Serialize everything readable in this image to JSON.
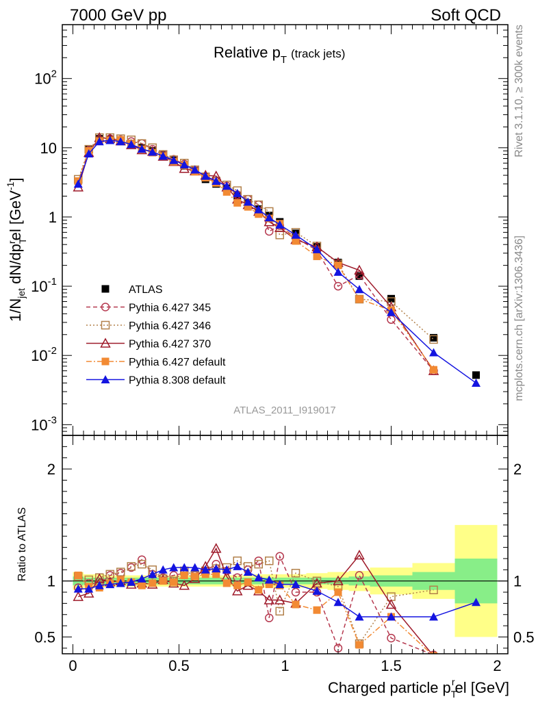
{
  "header": {
    "left": "7000 GeV pp",
    "right": "Soft QCD"
  },
  "side_labels": {
    "rivet": "Rivet 3.1.10, ≥ 300k events",
    "mcplots": "mcplots.cern.ch [arXiv:1306.3436]"
  },
  "chart_data": [
    {
      "type": "scatter",
      "title_main": "Relative p",
      "title_sub": "T",
      "title_extra": "(track jets)",
      "analysis_id": "ATLAS_2011_I919017",
      "ylabel_parts": [
        "1/N",
        "jet",
        " dN/dp",
        "T",
        "r",
        "el [GeV",
        "-1",
        "]"
      ],
      "y_scale": "log",
      "ylim": [
        0.0007,
        600
      ],
      "xlim": [
        -0.05,
        2.05
      ],
      "y_ticks": [
        {
          "v": 0.001,
          "m": "10",
          "e": "-3"
        },
        {
          "v": 0.01,
          "m": "10",
          "e": "-2"
        },
        {
          "v": 0.1,
          "m": "10",
          "e": "-1"
        },
        {
          "v": 1,
          "m": "1",
          "e": ""
        },
        {
          "v": 10,
          "m": "10",
          "e": ""
        },
        {
          "v": 100,
          "m": "10",
          "e": "2"
        }
      ],
      "x": [
        0.025,
        0.075,
        0.125,
        0.175,
        0.225,
        0.275,
        0.325,
        0.375,
        0.425,
        0.475,
        0.525,
        0.575,
        0.625,
        0.675,
        0.725,
        0.775,
        0.825,
        0.875,
        0.925,
        0.975,
        1.05,
        1.15,
        1.25,
        1.35,
        1.5,
        1.7,
        1.9
      ],
      "series": [
        {
          "name": "ATLAS",
          "color": "#000000",
          "marker": "square-filled",
          "line": "none",
          "values": [
            3.3,
            9.5,
            13.5,
            13.2,
            12.5,
            11.5,
            10.0,
            9.0,
            7.8,
            6.6,
            5.5,
            4.6,
            3.5,
            3.0,
            2.6,
            2.0,
            1.6,
            1.3,
            1.05,
            0.85,
            0.58,
            0.37,
            0.22,
            0.14,
            0.066,
            0.018,
            0.0052
          ]
        },
        {
          "name": "Pythia 6.427 345",
          "color": "#b5384e",
          "marker": "circle-open",
          "line": "dashed",
          "values": [
            3.2,
            9.2,
            13.0,
            13.5,
            13.0,
            12.3,
            11.5,
            9.5,
            8.0,
            6.8,
            5.8,
            4.8,
            3.8,
            3.3,
            2.8,
            2.1,
            1.8,
            1.5,
            0.62,
            0.75,
            0.5,
            0.33,
            0.1,
            0.145,
            0.033,
            0.006,
            null
          ]
        },
        {
          "name": "Pythia 6.427 346",
          "color": "#b2804a",
          "marker": "square-open",
          "line": "dotted",
          "values": [
            3.5,
            9.5,
            14.0,
            14.0,
            13.5,
            13.0,
            11.5,
            10.0,
            8.0,
            6.7,
            6.0,
            4.8,
            3.8,
            3.3,
            2.9,
            2.4,
            1.8,
            1.5,
            1.2,
            0.55,
            0.6,
            0.38,
            0.21,
            0.065,
            0.06,
            0.017,
            null
          ]
        },
        {
          "name": "Pythia 6.427 370",
          "color": "#9e1a2a",
          "marker": "triangle-open",
          "line": "solid",
          "values": [
            2.7,
            8.5,
            14.0,
            13.5,
            12.5,
            11.0,
            9.3,
            8.8,
            7.5,
            6.3,
            5.0,
            4.6,
            4.0,
            3.9,
            2.7,
            1.8,
            1.5,
            1.2,
            0.85,
            0.7,
            0.47,
            0.37,
            0.22,
            0.17,
            0.05,
            0.006,
            null
          ]
        },
        {
          "name": "Pythia 6.427 default",
          "color": "#f28a33",
          "marker": "square-filled",
          "line": "dashdot",
          "values": [
            3.3,
            9.0,
            12.5,
            12.8,
            13.0,
            11.5,
            9.5,
            8.5,
            7.6,
            6.3,
            5.6,
            4.5,
            3.7,
            3.1,
            2.3,
            1.6,
            1.4,
            1.1,
            0.95,
            0.8,
            0.45,
            0.27,
            0.2,
            0.065,
            0.045,
            0.0062,
            null
          ]
        },
        {
          "name": "Pythia 8.308 default",
          "color": "#1414e0",
          "marker": "triangle-filled",
          "line": "solid",
          "values": [
            3.0,
            8.2,
            12.3,
            12.8,
            12.3,
            11.2,
            9.6,
            8.7,
            7.6,
            6.6,
            5.7,
            4.8,
            3.9,
            3.3,
            2.8,
            2.2,
            1.65,
            1.28,
            0.98,
            0.77,
            0.55,
            0.34,
            0.16,
            0.09,
            0.042,
            0.011,
            0.004
          ]
        }
      ]
    },
    {
      "type": "scatter",
      "ylabel": "Ratio to ATLAS",
      "ylim": [
        0.35,
        2.3
      ],
      "xlim": [
        -0.05,
        2.05
      ],
      "xlabel_parts": [
        "Charged particle p",
        "T",
        "r",
        "el [GeV]"
      ],
      "x_ticks": [
        {
          "v": 0,
          "l": "0"
        },
        {
          "v": 0.5,
          "l": "0.5"
        },
        {
          "v": 1,
          "l": "1"
        },
        {
          "v": 1.5,
          "l": "1.5"
        },
        {
          "v": 2,
          "l": "2"
        }
      ],
      "y_ticks": [
        {
          "v": 0.5,
          "l": "0.5"
        },
        {
          "v": 1,
          "l": "1"
        },
        {
          "v": 2,
          "l": "2"
        }
      ],
      "x_edges": [
        0,
        0.05,
        0.1,
        0.15,
        0.2,
        0.25,
        0.3,
        0.35,
        0.4,
        0.45,
        0.5,
        0.55,
        0.6,
        0.65,
        0.7,
        0.75,
        0.8,
        0.85,
        0.9,
        0.95,
        1.0,
        1.1,
        1.2,
        1.3,
        1.4,
        1.6,
        1.8,
        2.0
      ],
      "band_stat": [
        0.04,
        0.03,
        0.03,
        0.03,
        0.03,
        0.03,
        0.03,
        0.03,
        0.03,
        0.03,
        0.03,
        0.03,
        0.03,
        0.03,
        0.03,
        0.03,
        0.03,
        0.03,
        0.03,
        0.03,
        0.03,
        0.03,
        0.03,
        0.04,
        0.05,
        0.08,
        0.2
      ],
      "band_total": [
        0.08,
        0.06,
        0.06,
        0.05,
        0.05,
        0.05,
        0.05,
        0.05,
        0.05,
        0.05,
        0.05,
        0.05,
        0.05,
        0.05,
        0.05,
        0.05,
        0.05,
        0.06,
        0.06,
        0.06,
        0.06,
        0.07,
        0.08,
        0.09,
        0.12,
        0.16,
        0.5
      ],
      "x": [
        0.025,
        0.075,
        0.125,
        0.175,
        0.225,
        0.275,
        0.325,
        0.375,
        0.425,
        0.475,
        0.525,
        0.575,
        0.625,
        0.675,
        0.725,
        0.775,
        0.825,
        0.875,
        0.925,
        0.975,
        1.05,
        1.15,
        1.25,
        1.35,
        1.5,
        1.7,
        1.9
      ],
      "series": [
        {
          "name": "Pythia 6.427 345",
          "color": "#b5384e",
          "marker": "circle-open",
          "line": "dashed",
          "values": [
            0.94,
            0.98,
            0.97,
            1.05,
            1.07,
            1.12,
            1.19,
            1.06,
            1.03,
            1.05,
            1.07,
            1.05,
            1.09,
            1.15,
            1.09,
            1.03,
            1.1,
            1.18,
            0.67,
            1.22,
            0.9,
            0.9,
            0.4,
            1.05,
            0.49,
            0.34,
            null
          ]
        },
        {
          "name": "Pythia 6.427 346",
          "color": "#b2804a",
          "marker": "square-open",
          "line": "dotted",
          "values": [
            1.04,
            1.01,
            1.03,
            1.06,
            1.08,
            1.13,
            1.15,
            1.1,
            1.02,
            1.0,
            1.09,
            1.05,
            1.09,
            1.11,
            1.12,
            1.18,
            1.13,
            1.15,
            1.18,
            0.73,
            1.07,
            1.0,
            0.95,
            0.44,
            0.86,
            0.92,
            null
          ]
        },
        {
          "name": "Pythia 6.427 370",
          "color": "#9e1a2a",
          "marker": "triangle-open",
          "line": "solid",
          "values": [
            0.86,
            0.89,
            1.02,
            0.99,
            1.0,
            0.97,
            0.98,
            0.97,
            1.01,
            0.98,
            0.96,
            1.02,
            1.13,
            1.29,
            1.04,
            0.91,
            0.96,
            0.91,
            0.83,
            0.83,
            0.8,
            0.98,
            1.0,
            1.23,
            0.79,
            0.33,
            null
          ]
        },
        {
          "name": "Pythia 6.427 default",
          "color": "#f28a33",
          "marker": "square-filled",
          "line": "dashdot",
          "values": [
            1.05,
            0.95,
            0.94,
            0.98,
            1.01,
            0.99,
            0.96,
            0.98,
            1.0,
            0.99,
            1.05,
            1.04,
            1.06,
            1.06,
            0.98,
            0.96,
            0.99,
            0.92,
            0.97,
            0.96,
            0.79,
            0.74,
            0.9,
            0.43,
            0.68,
            0.33,
            null
          ]
        },
        {
          "name": "Pythia 8.308 default",
          "color": "#1414e0",
          "marker": "triangle-filled",
          "line": "solid",
          "values": [
            0.93,
            0.93,
            0.96,
            0.97,
            0.98,
            0.99,
            1.02,
            1.06,
            1.1,
            1.12,
            1.12,
            1.12,
            1.1,
            1.11,
            1.1,
            1.13,
            1.08,
            1.03,
            1.01,
            0.97,
            0.97,
            0.91,
            0.81,
            0.68,
            0.68,
            0.68,
            0.81
          ]
        }
      ]
    }
  ]
}
